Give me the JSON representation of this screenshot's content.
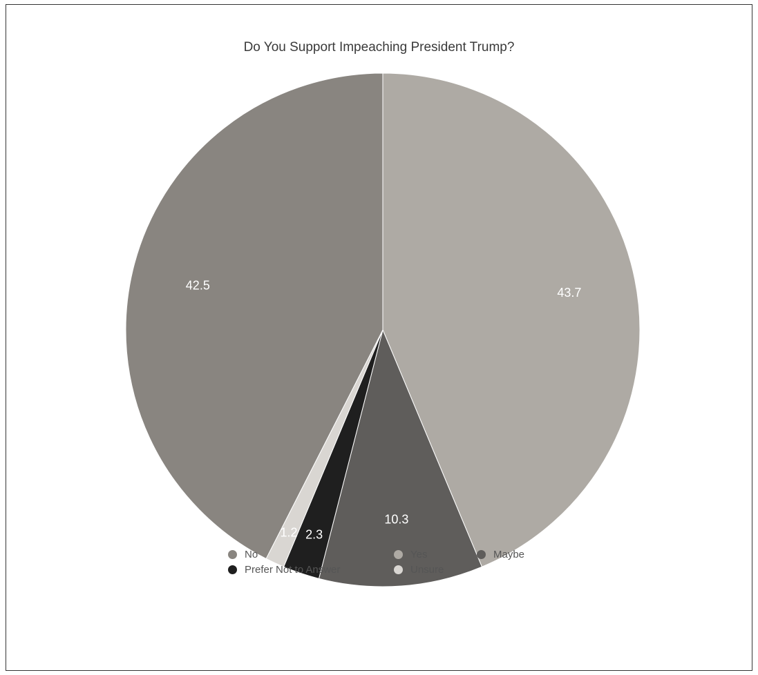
{
  "chart_data": {
    "type": "pie",
    "title": "Do You Support Impeaching President Trump?",
    "slices": [
      {
        "name": "Yes",
        "value": 43.7,
        "label": "43.7",
        "color": "#aeaaa4"
      },
      {
        "name": "Maybe",
        "value": 10.3,
        "label": "10.3",
        "color": "#5f5d5b"
      },
      {
        "name": "Prefer Not to Answer",
        "value": 2.3,
        "label": "2.3",
        "color": "#1f1f1f"
      },
      {
        "name": "Unsure",
        "value": 1.2,
        "label": "1.2",
        "color": "#d9d6d2"
      },
      {
        "name": "No",
        "value": 42.5,
        "label": "42.5",
        "color": "#898580"
      }
    ],
    "legend": {
      "placement": "bottom",
      "items": [
        "No",
        "Yes",
        "Maybe",
        "Prefer Not to Answer",
        "Unsure"
      ]
    }
  }
}
